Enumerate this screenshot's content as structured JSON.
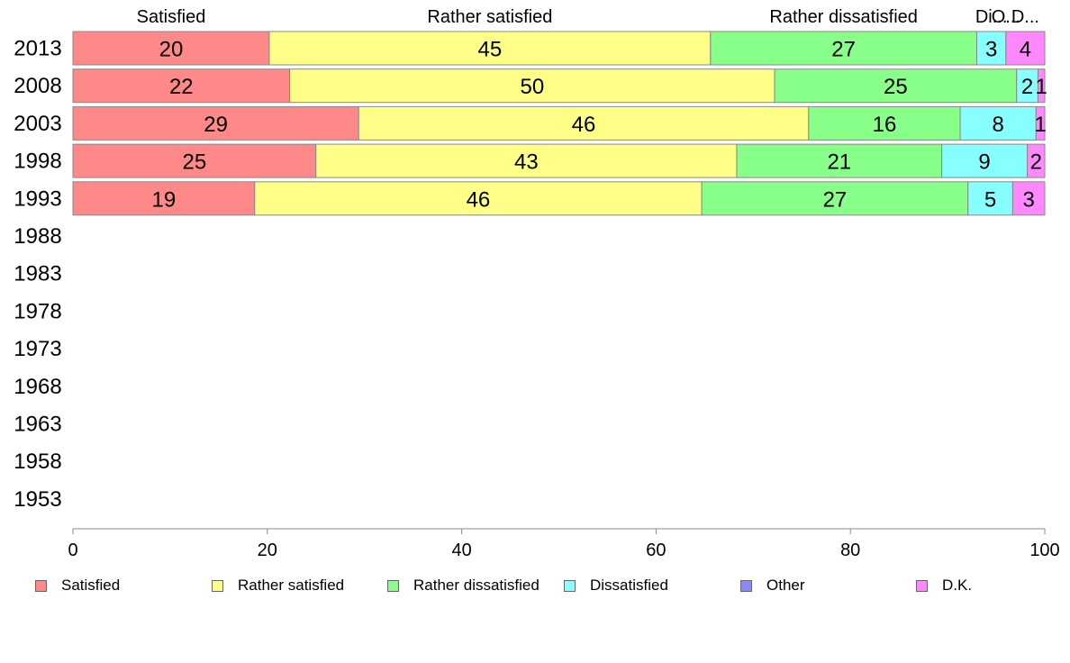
{
  "chart_data": {
    "type": "bar",
    "orientation": "horizontal",
    "stacked": true,
    "categories": [
      "2013",
      "2008",
      "2003",
      "1998",
      "1993",
      "1988",
      "1983",
      "1978",
      "1973",
      "1968",
      "1963",
      "1958",
      "1953"
    ],
    "series": [
      {
        "name": "Satisfied",
        "color": "#ff8888",
        "values": [
          20.2,
          22.3,
          29.4,
          25.0,
          18.7,
          null,
          null,
          null,
          null,
          null,
          null,
          null,
          null
        ],
        "labels": [
          "20",
          "22",
          "29",
          "25",
          "19",
          "",
          "",
          "",
          "",
          "",
          "",
          "",
          ""
        ]
      },
      {
        "name": "Rather satisfied",
        "color": "#ffff88",
        "values": [
          45.4,
          49.9,
          46.3,
          43.3,
          46.0,
          null,
          null,
          null,
          null,
          null,
          null,
          null,
          null
        ],
        "labels": [
          "45",
          "50",
          "46",
          "43",
          "46",
          "",
          "",
          "",
          "",
          "",
          "",
          "",
          ""
        ]
      },
      {
        "name": "Rather dissatisfied",
        "color": "#88ff88",
        "values": [
          27.4,
          24.9,
          15.6,
          21.1,
          27.4,
          null,
          null,
          null,
          null,
          null,
          null,
          null,
          null
        ],
        "labels": [
          "27",
          "25",
          "16",
          "21",
          "27",
          "",
          "",
          "",
          "",
          "",
          "",
          "",
          ""
        ]
      },
      {
        "name": "Dissatisfied",
        "color": "#88ffff",
        "values": [
          3.0,
          2.2,
          7.8,
          8.8,
          4.6,
          null,
          null,
          null,
          null,
          null,
          null,
          null,
          null
        ],
        "labels": [
          "3",
          "2",
          "8",
          "9",
          "5",
          "",
          "",
          "",
          "",
          "",
          "",
          "",
          ""
        ]
      },
      {
        "name": "Other",
        "color": "#8888ff",
        "values": [
          0,
          0,
          0,
          0,
          0,
          null,
          null,
          null,
          null,
          null,
          null,
          null,
          null
        ],
        "labels": [
          "",
          "",
          "",
          "",
          "",
          "",
          "",
          "",
          "",
          "",
          "",
          "",
          ""
        ]
      },
      {
        "name": "D.K.",
        "color": "#ff88ff",
        "values": [
          4.0,
          0.7,
          0.9,
          1.8,
          3.3,
          null,
          null,
          null,
          null,
          null,
          null,
          null,
          null
        ],
        "labels": [
          "4",
          "1",
          "1",
          "2",
          "3",
          "",
          "",
          "",
          "",
          "",
          "",
          "",
          ""
        ]
      }
    ],
    "segment_headers": [
      "Satisfied",
      "Rather satisfied",
      "Rather dissatisfied",
      "Dissatisfied",
      "Other",
      "D.K."
    ],
    "segment_headers_shown": [
      "Satisfied",
      "Rather satisfied",
      "Rather dissatisfied",
      "Di...",
      "O...",
      "D..."
    ],
    "xlim": [
      0,
      100
    ],
    "xticks": [
      "0",
      "20",
      "40",
      "60",
      "80",
      "100"
    ],
    "title": "",
    "xlabel": "",
    "ylabel": "",
    "grid": false,
    "legend_position": "bottom"
  }
}
